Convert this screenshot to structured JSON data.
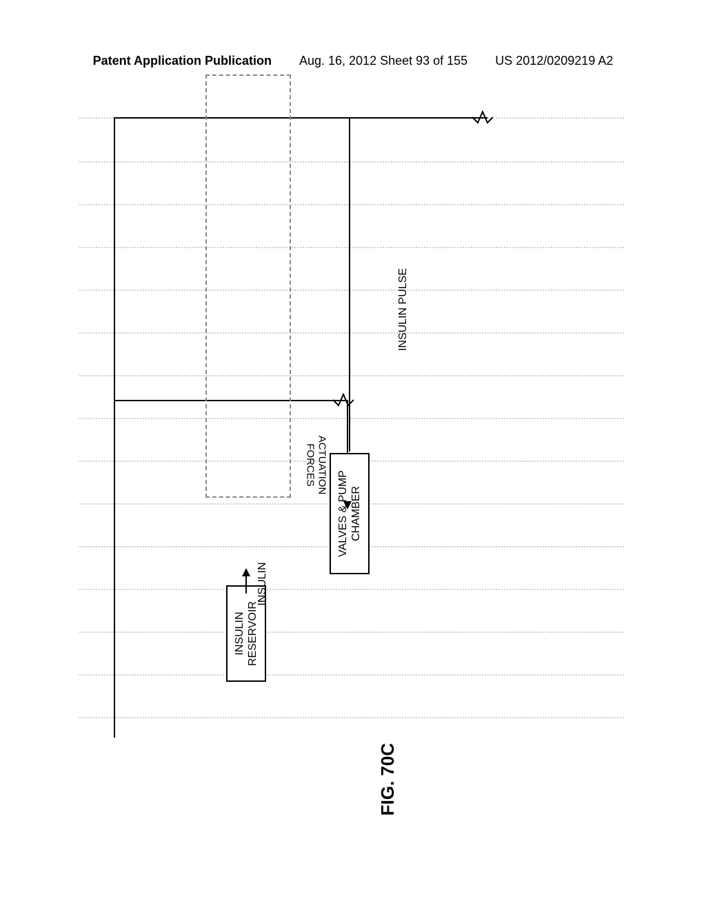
{
  "header": {
    "left": "Patent Application Publication",
    "center": "Aug. 16, 2012  Sheet 93 of 155",
    "right": "US 2012/0209219 A2"
  },
  "diagram": {
    "gridline_color": "#cccccc",
    "gridline_positions": [
      0,
      64,
      126,
      188,
      250,
      312,
      374,
      436,
      498,
      560,
      622,
      684,
      746,
      808,
      870
    ],
    "blocks": {
      "reservoir": {
        "line1": "INSULIN",
        "line2": "RESERVOIR"
      },
      "valves": {
        "line1": "VALVES & PUMP",
        "line2": "CHAMBER"
      }
    },
    "labels": {
      "insulin_flow": "INSULIN",
      "insulin_pulse": "INSULIN PULSE",
      "actuation": "ACTUATION\nFORCES"
    },
    "figure_label": "FIG. 70C",
    "line_color": "#000000",
    "dashed_color": "#888888",
    "background_color": "#ffffff"
  }
}
